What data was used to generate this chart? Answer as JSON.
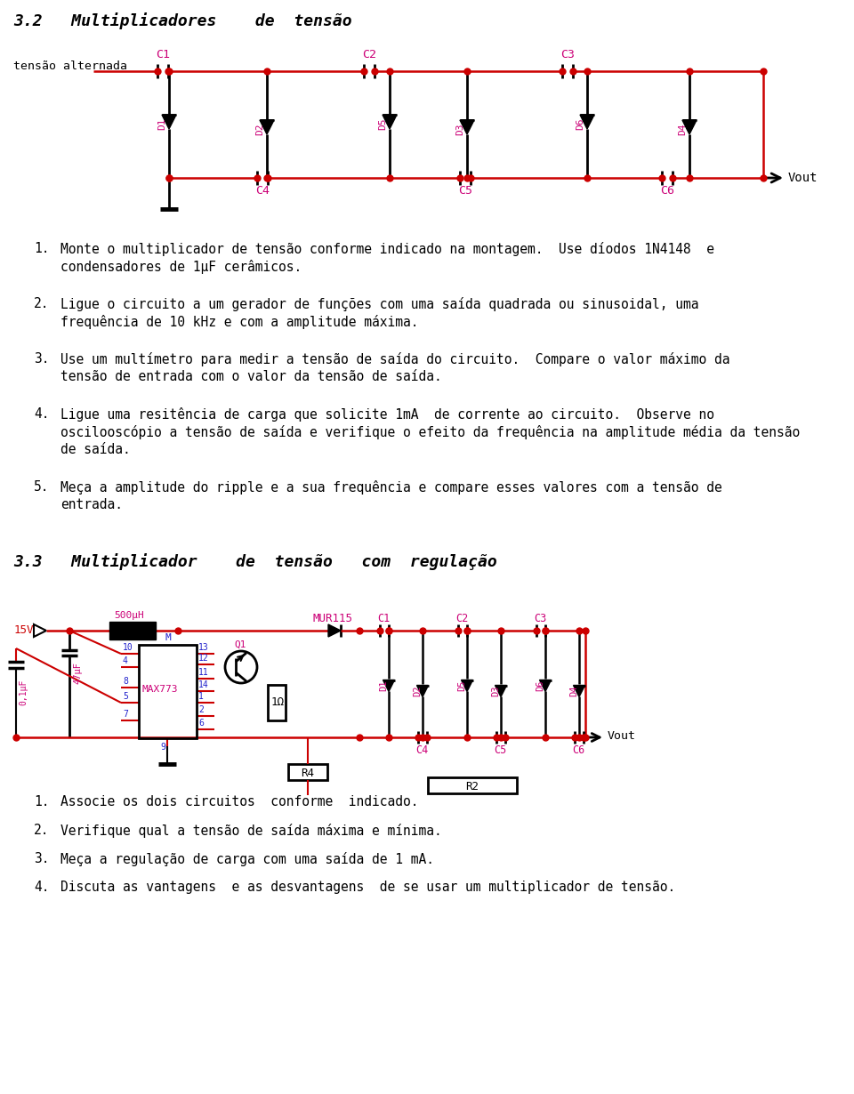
{
  "title_32": "3.2   Multiplicadores    de  tensão",
  "title_33": "3.3   Multiplicador    de  tensão   com  regulação",
  "magenta": "#cc0077",
  "red": "#cc0000",
  "blue": "#2222cc",
  "black": "#000000",
  "bg": "#ffffff",
  "text_items_32": [
    [
      "1.",
      "Monte o multiplicador de tensão conforme indicado na montagem.  Use díodos 1N4148  e",
      "   condensadores de 1μF cerâmicos."
    ],
    [
      "2.",
      "Ligue o circuito a um gerador de funções com uma saída quadrada ou sinusoidal, uma",
      "   frequência de 10 kHz e com a amplitude máxima."
    ],
    [
      "3.",
      "Use um multímetro para medir a tensão de saída do circuito.  Compare o valor máximo da",
      "   tensão de entrada com o valor da tensão de saída."
    ],
    [
      "4.",
      "Ligue uma resitência de carga que solicite 1mA  de corrente ao circuito.  Observe no",
      "   oscilooscópio a tensão de saída e verifique o efeito da frequência na amplitude média da tensão",
      "   de saída."
    ],
    [
      "5.",
      "Meça a amplitude do ripple e a sua frequência e compare esses valores com a tensão de",
      "   entrada."
    ]
  ],
  "text_items_33": [
    [
      "1.",
      "Associe os dois circuitos  conforme  indicado."
    ],
    [
      "2.",
      "Verifique qual a tensão de saída máxima e mínima."
    ],
    [
      "3.",
      "Meça a regulação de carga com uma saída de 1 mA."
    ],
    [
      "4.",
      "Discuta as vantagens  e as desvantagens  de se usar um multiplicador de tensão."
    ]
  ]
}
